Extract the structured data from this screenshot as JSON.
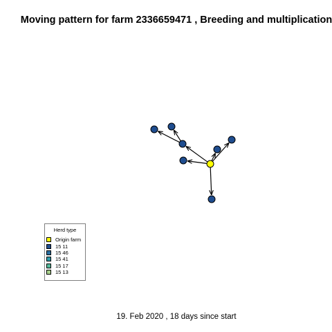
{
  "title": "Moving pattern for farm 2336659471 , Breeding and multiplication",
  "caption": "19. Feb 2020 ,  18 days since start",
  "legend": {
    "title": "Herd type",
    "items": [
      {
        "label": "Origin farm",
        "color": "#FFFF00"
      },
      {
        "label": "15 11",
        "color": "#1F4D8F"
      },
      {
        "label": "15 46",
        "color": "#2B6EA0"
      },
      {
        "label": "15 41",
        "color": "#2E9AA8"
      },
      {
        "label": "15 17",
        "color": "#55B89A"
      },
      {
        "label": "15 13",
        "color": "#A8D08C"
      }
    ]
  },
  "network": {
    "node_color": "#1F4D8F",
    "origin_color": "#FFFF00",
    "nodes": [
      {
        "id": "origin",
        "type": "Origin farm"
      },
      {
        "id": "n1",
        "type": "15 11"
      },
      {
        "id": "n2",
        "type": "15 11"
      },
      {
        "id": "n3",
        "type": "15 11"
      },
      {
        "id": "n4",
        "type": "15 11"
      },
      {
        "id": "n5",
        "type": "15 11"
      },
      {
        "id": "n6",
        "type": "15 11"
      },
      {
        "id": "n7",
        "type": "15 11"
      }
    ],
    "edges": [
      {
        "from": "origin",
        "to": "n3"
      },
      {
        "from": "origin",
        "to": "n4"
      },
      {
        "from": "origin",
        "to": "n5"
      },
      {
        "from": "origin",
        "to": "n6"
      },
      {
        "from": "origin",
        "to": "n7"
      },
      {
        "from": "n3",
        "to": "n1"
      },
      {
        "from": "n3",
        "to": "n2"
      }
    ]
  }
}
